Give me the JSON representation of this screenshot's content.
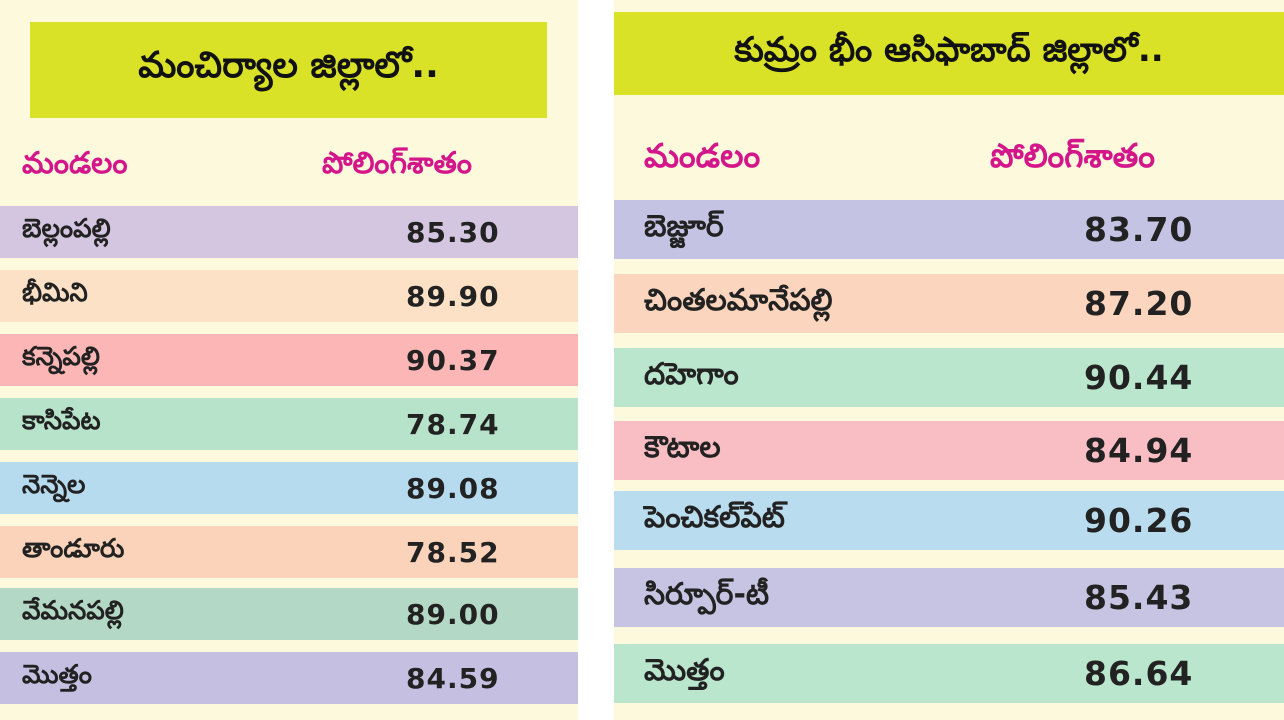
{
  "left": {
    "title": "మంచిర్యాల జిల్లాలో..",
    "headers": [
      "మండలం",
      "పోలింగ్‌శాతం"
    ],
    "rows": [
      {
        "mandal": "బెల్లంపల్లి",
        "percent": "85.30",
        "color": "#d4c5e1"
      },
      {
        "mandal": "భీమిని",
        "percent": "89.90",
        "color": "#fce1c6"
      },
      {
        "mandal": "కన్నెపల్లి",
        "percent": "90.37",
        "color": "#fdb6b6"
      },
      {
        "mandal": "కాసిపేట",
        "percent": "78.74",
        "color": "#b6e3ca"
      },
      {
        "mandal": "నెన్నెల",
        "percent": "89.08",
        "color": "#b6dbef"
      },
      {
        "mandal": "తాండూరు",
        "percent": "78.52",
        "color": "#fbd3ba"
      },
      {
        "mandal": "వేమనపల్లి",
        "percent": "89.00",
        "color": "#b4d8c6"
      },
      {
        "mandal": "మొత్తం",
        "percent": "84.59",
        "color": "#c5c0e1"
      }
    ]
  },
  "right": {
    "title": "కుమ్రం భీం ఆసిఫాబాద్ జిల్లాలో..",
    "headers": [
      "మండలం",
      "పోలింగ్‌శాతం"
    ],
    "rows": [
      {
        "mandal": "బెజ్జూర్",
        "percent": "83.70",
        "color": "#c4c3e3"
      },
      {
        "mandal": "చింతలమానేపల్లి",
        "percent": "87.20",
        "color": "#fbd5bd"
      },
      {
        "mandal": "దహెగాం",
        "percent": "90.44",
        "color": "#b9e6cd"
      },
      {
        "mandal": "కౌటాల",
        "percent": "84.94",
        "color": "#f9bdc4"
      },
      {
        "mandal": "పెంచికల్‌పేట్",
        "percent": "90.26",
        "color": "#b9dcef"
      },
      {
        "mandal": "సిర్పూర్-టీ",
        "percent": "85.43",
        "color": "#c7c3e3"
      },
      {
        "mandal": "మొత్తం",
        "percent": "86.64",
        "color": "#b9e6cd"
      }
    ]
  }
}
